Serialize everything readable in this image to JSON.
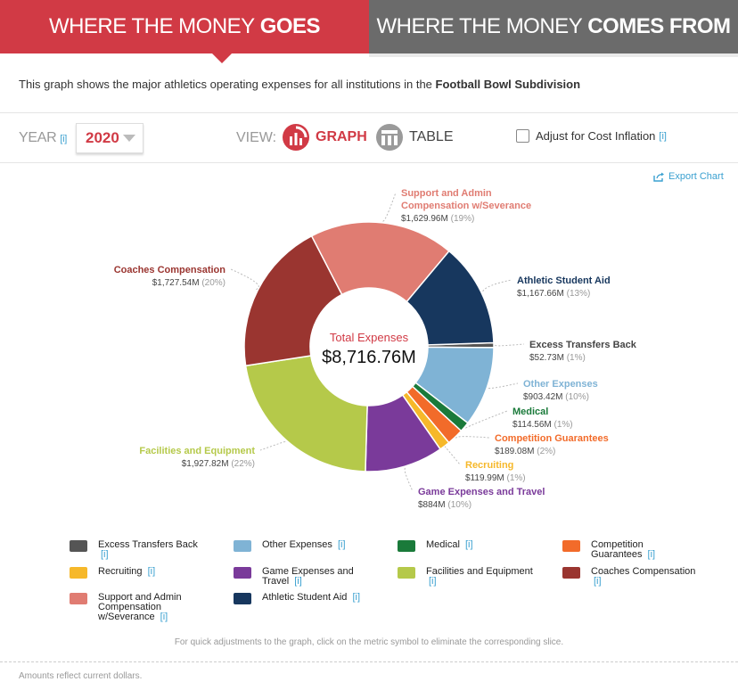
{
  "tabs": {
    "active_pre": "WHERE THE MONEY",
    "active_bold": "GOES",
    "inactive_pre": "WHERE THE MONEY",
    "inactive_bold": "COMES FROM",
    "colors": {
      "active": "#d13a45",
      "inactive": "#6b6b6b"
    }
  },
  "description": {
    "text": "This graph shows the major athletics operating expenses for all institutions in the",
    "bold": "Football Bowl Subdivision"
  },
  "controls": {
    "year_label": "YEAR",
    "info": "[i]",
    "year_value": "2020",
    "view_label": "VIEW:",
    "graph_label": "GRAPH",
    "table_label": "TABLE",
    "inflation_label": "Adjust for Cost Inflation",
    "inflation_checked": false,
    "export_label": "Export Chart"
  },
  "chart_data": {
    "type": "pie",
    "center_title": "Total Expenses",
    "center_value": "$8,716.76M",
    "slices": [
      {
        "name": "Excess Transfers Back",
        "value": 52.73,
        "amount": "$52.73M",
        "pct": "(1%)",
        "color": "#555555"
      },
      {
        "name": "Other Expenses",
        "value": 903.42,
        "amount": "$903.42M",
        "pct": "(10%)",
        "color": "#7fb3d5"
      },
      {
        "name": "Medical",
        "value": 114.56,
        "amount": "$114.56M",
        "pct": "(1%)",
        "color": "#1a7a3a"
      },
      {
        "name": "Competition Guarantees",
        "value": 189.08,
        "amount": "$189.08M",
        "pct": "(2%)",
        "color": "#f26b2a"
      },
      {
        "name": "Recruiting",
        "value": 119.99,
        "amount": "$119.99M",
        "pct": "(1%)",
        "color": "#f6b82a"
      },
      {
        "name": "Game Expenses and Travel",
        "value": 884,
        "amount": "$884M",
        "pct": "(10%)",
        "color": "#7a3a9a"
      },
      {
        "name": "Facilities and Equipment",
        "value": 1927.82,
        "amount": "$1,927.82M",
        "pct": "(22%)",
        "color": "#b5c94a"
      },
      {
        "name": "Coaches Compensation",
        "value": 1727.54,
        "amount": "$1,727.54M",
        "pct": "(20%)",
        "color": "#9a3530"
      },
      {
        "name": "Support and Admin Compensation w/Severance",
        "value": 1629.96,
        "amount": "$1,629.96M",
        "pct": "(19%)",
        "color": "#e07c72"
      },
      {
        "name": "Athletic Student Aid",
        "value": 1167.66,
        "amount": "$1,167.66M",
        "pct": "(13%)",
        "color": "#17375e"
      }
    ]
  },
  "legend": [
    {
      "label": "Excess Transfers Back",
      "info": "[i]",
      "color": "#555555"
    },
    {
      "label": "Other Expenses",
      "info": "[i]",
      "color": "#7fb3d5"
    },
    {
      "label": "Medical",
      "info": "[i]",
      "color": "#1a7a3a"
    },
    {
      "label": "Competition Guarantees",
      "info": "[i]",
      "color": "#f26b2a"
    },
    {
      "label": "Recruiting",
      "info": "[i]",
      "color": "#f6b82a"
    },
    {
      "label": "Game Expenses and Travel",
      "info": "[i]",
      "color": "#7a3a9a"
    },
    {
      "label": "Facilities and Equipment",
      "info": "[i]",
      "color": "#b5c94a"
    },
    {
      "label": "Coaches Compensation",
      "info": "[i]",
      "color": "#9a3530"
    },
    {
      "label": "Support and Admin Compensation w/Severance",
      "info": "[i]",
      "color": "#e07c72"
    },
    {
      "label": "Athletic Student Aid",
      "info": "[i]",
      "color": "#17375e"
    }
  ],
  "hint": "For quick adjustments to the graph, click on the metric symbol to eliminate the corresponding slice.",
  "footnote": "Amounts reflect current dollars."
}
